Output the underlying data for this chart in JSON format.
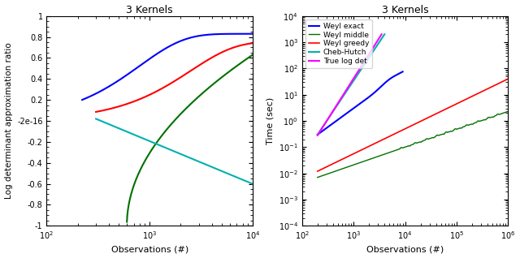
{
  "title": "3 Kernels",
  "left_ylabel": "Log determinant approximation ratio",
  "left_xlabel": "Observations (#)",
  "left_xlim": [
    100,
    10000
  ],
  "left_ylim": [
    -1,
    1
  ],
  "right_ylabel": "Time (sec)",
  "right_xlabel": "Observations (#)",
  "right_xlim": [
    100,
    1000000
  ],
  "right_ylim": [
    0.0001,
    10000.0
  ],
  "legend_entries": [
    "Weyl exact",
    "Weyl middle",
    "Weyl greedy",
    "Cheb-Hutch",
    "True log det"
  ],
  "line_colors_left": {
    "weyl_exact": "#0000ff",
    "weyl_middle": "#ff0000",
    "weyl_greedy": "#007000",
    "cheb_hutch": "#00b0b0"
  },
  "line_colors_right": {
    "weyl_exact": "#0000ff",
    "weyl_middle": "#007000",
    "weyl_greedy": "#ff0000",
    "cheb_hutch": "#00b0b0",
    "true_log_det": "#ff00ff"
  },
  "bg_color": "#ffffff"
}
